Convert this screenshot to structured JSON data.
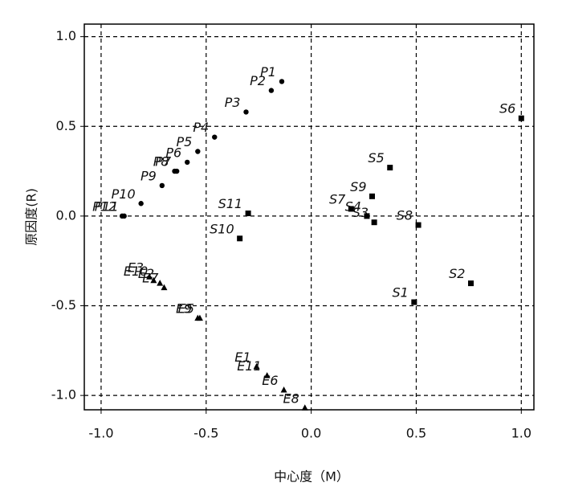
{
  "chart_data": {
    "type": "scatter",
    "xlabel": "中心度（M）",
    "ylabel": "原因度(R)",
    "xlim": [
      -1.08,
      1.06
    ],
    "ylim": [
      -1.08,
      1.07
    ],
    "xticks": [
      {
        "value": -1.0,
        "label": "-1.0"
      },
      -0.5,
      {
        "value": 0.0,
        "label": "0.0"
      },
      0.5,
      {
        "value": 1.0,
        "label": "1.0"
      }
    ],
    "yticks": [
      {
        "value": -1.0,
        "label": "-1.0"
      },
      -0.5,
      {
        "value": 0.0,
        "label": "0.0"
      },
      0.5,
      {
        "value": 1.0,
        "label": "1.0"
      }
    ],
    "grid": true,
    "color": "#000000",
    "groups": [
      {
        "marker": "circle",
        "points": [
          {
            "label": "P1",
            "x": -0.14,
            "y": 0.75
          },
          {
            "label": "P2",
            "x": -0.19,
            "y": 0.7
          },
          {
            "label": "P3",
            "x": -0.31,
            "y": 0.58
          },
          {
            "label": "P4",
            "x": -0.46,
            "y": 0.44
          },
          {
            "label": "P5",
            "x": -0.54,
            "y": 0.36
          },
          {
            "label": "P6",
            "x": -0.59,
            "y": 0.3
          },
          {
            "label": "P7",
            "x": -0.64,
            "y": 0.25
          },
          {
            "label": "P8",
            "x": -0.65,
            "y": 0.25
          },
          {
            "label": "P9",
            "x": -0.71,
            "y": 0.17
          },
          {
            "label": "P10",
            "x": -0.81,
            "y": 0.07
          },
          {
            "label": "P11",
            "x": -0.89,
            "y": 0.0
          },
          {
            "label": "P12",
            "x": -0.9,
            "y": 0.0
          }
        ]
      },
      {
        "marker": "square",
        "points": [
          {
            "label": "S1",
            "x": 0.49,
            "y": -0.48
          },
          {
            "label": "S2",
            "x": 0.76,
            "y": -0.375
          },
          {
            "label": "S3",
            "x": 0.3,
            "y": -0.035
          },
          {
            "label": "S4",
            "x": 0.265,
            "y": 0.0
          },
          {
            "label": "S5",
            "x": 0.375,
            "y": 0.27
          },
          {
            "label": "S6",
            "x": 1.0,
            "y": 0.545
          },
          {
            "label": "S7",
            "x": 0.19,
            "y": 0.04
          },
          {
            "label": "S8",
            "x": 0.51,
            "y": -0.05
          },
          {
            "label": "S9",
            "x": 0.29,
            "y": 0.11
          },
          {
            "label": "S10",
            "x": -0.34,
            "y": -0.125
          },
          {
            "label": "S11",
            "x": -0.3,
            "y": 0.015
          }
        ]
      },
      {
        "marker": "triangle",
        "points": [
          {
            "label": "E1",
            "x": -0.26,
            "y": -0.84
          },
          {
            "label": "E2",
            "x": -0.72,
            "y": -0.375
          },
          {
            "label": "E3",
            "x": -0.77,
            "y": -0.34
          },
          {
            "label": "E5",
            "x": -0.53,
            "y": -0.57
          },
          {
            "label": "E6",
            "x": -0.13,
            "y": -0.97
          },
          {
            "label": "E7",
            "x": -0.7,
            "y": -0.4
          },
          {
            "label": "E8",
            "x": -0.03,
            "y": -1.07
          },
          {
            "label": "E9",
            "x": -0.54,
            "y": -0.57
          },
          {
            "label": "E10",
            "x": -0.75,
            "y": -0.36
          },
          {
            "label": "E11",
            "x": -0.21,
            "y": -0.89
          }
        ]
      }
    ]
  }
}
